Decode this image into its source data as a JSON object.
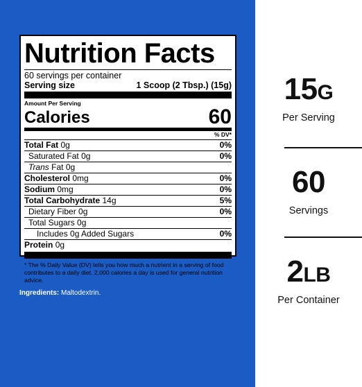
{
  "label": {
    "title": "Nutrition Facts",
    "servings_per_container": "60 servings per container",
    "serving_size_label": "Serving size",
    "serving_size_value": "1 Scoop (2 Tbsp.) (15g)",
    "amount_per_serving": "Amount Per Serving",
    "calories_label": "Calories",
    "calories_value": "60",
    "dv_header": "% DV*",
    "rows": [
      {
        "name": "Total Fat",
        "amount": "0g",
        "pct": "0%"
      },
      {
        "name": "Saturated Fat",
        "amount": "0g",
        "pct": "0%"
      },
      {
        "name": "Trans",
        "name_rest": "Fat",
        "amount": "0g",
        "pct": ""
      },
      {
        "name": "Cholesterol",
        "amount": "0mg",
        "pct": "0%"
      },
      {
        "name": "Sodium",
        "amount": "0mg",
        "pct": "0%"
      },
      {
        "name": "Total Carbohydrate",
        "amount": "14g",
        "pct": "5%"
      },
      {
        "name": "Dietary Fiber",
        "amount": "0g",
        "pct": "0%"
      },
      {
        "name": "Total Sugars",
        "amount": "0g",
        "pct": ""
      },
      {
        "name": "Includes 0g Added Sugars",
        "amount": "",
        "pct": "0%"
      },
      {
        "name": "Protein",
        "amount": "0g",
        "pct": ""
      }
    ],
    "footnote": "* The % Daily Value (DV) tells you how much a nutrient in a serving of food contributes to a daily diet. 2,000 calories a day is used for general nutrition advice."
  },
  "ingredients": {
    "label": "Ingredients:",
    "value": "Maltodextrin."
  },
  "stats": [
    {
      "big": "15",
      "unit": "G",
      "sub": "Per Serving"
    },
    {
      "big": "60",
      "unit": "",
      "sub": "Servings"
    },
    {
      "big": "2",
      "unit": "LB",
      "sub": "Per Container"
    }
  ],
  "colors": {
    "panel_blue": "#1a5cc4",
    "text_dark": "#111111"
  }
}
